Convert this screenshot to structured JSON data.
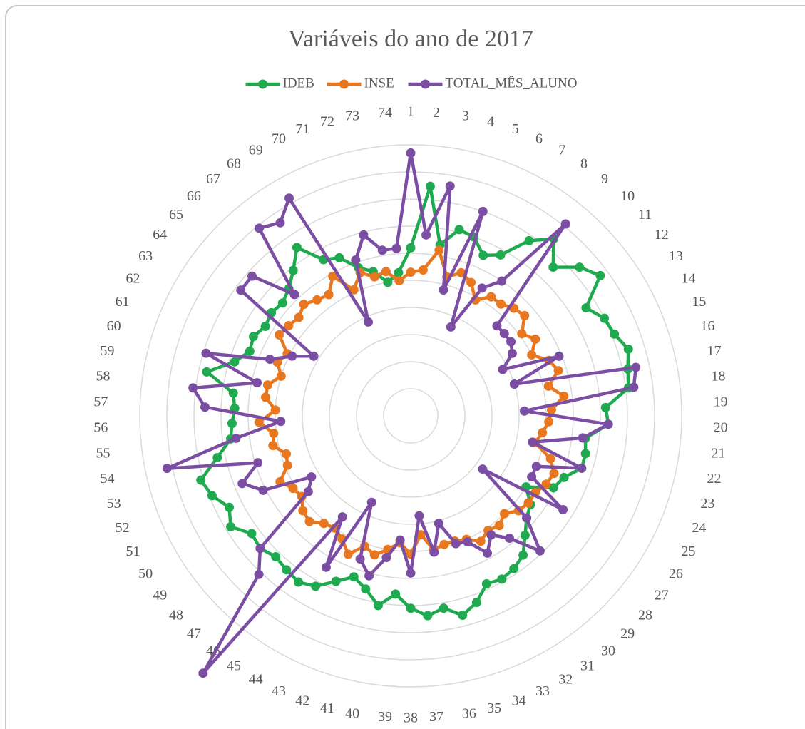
{
  "chart_data": {
    "type": "radar",
    "title": "Variáveis do ano de 2017",
    "categories": [
      "1",
      "2",
      "3",
      "4",
      "5",
      "6",
      "7",
      "8",
      "9",
      "10",
      "11",
      "12",
      "13",
      "14",
      "15",
      "16",
      "17",
      "18",
      "19",
      "20",
      "21",
      "22",
      "23",
      "24",
      "25",
      "26",
      "27",
      "28",
      "29",
      "30",
      "31",
      "32",
      "33",
      "34",
      "35",
      "36",
      "37",
      "38",
      "39",
      "40",
      "41",
      "42",
      "43",
      "44",
      "45",
      "46",
      "47",
      "48",
      "49",
      "50",
      "51",
      "52",
      "53",
      "54",
      "55",
      "56",
      "57",
      "58",
      "59",
      "60",
      "61",
      "62",
      "63",
      "64",
      "65",
      "66",
      "67",
      "68",
      "69",
      "70",
      "71",
      "72",
      "73",
      "74"
    ],
    "series": [
      {
        "name": "IDEB",
        "color": "#1faa4f",
        "values": [
          6.2,
          8.5,
          6.4,
          7.1,
          7.0,
          6.5,
          6.8,
          7.8,
          8.4,
          7.6,
          8.3,
          8.7,
          7.6,
          8.0,
          8.1,
          8.4,
          8.2,
          8.1,
          7.2,
          7.3,
          6.5,
          6.6,
          6.6,
          6.1,
          5.9,
          5.0,
          5.5,
          5.7,
          6.1,
          6.6,
          6.8,
          6.9,
          6.8,
          7.3,
          7.6,
          7.2,
          7.4,
          7.1,
          6.6,
          7.1,
          6.6,
          6.3,
          6.7,
          7.2,
          7.4,
          7.3,
          7.2,
          7.4,
          7.3,
          7.8,
          7.5,
          7.9,
          8.1,
          7.3,
          6.7,
          6.6,
          6.5,
          6.6,
          7.7,
          6.8,
          6.4,
          6.5,
          6.3,
          6.4,
          6.3,
          6.5,
          6.9,
          7.5,
          6.6,
          6.4,
          5.8,
          5.5,
          5.0,
          5.3
        ]
      },
      {
        "name": "INSE",
        "color": "#e8771f",
        "values": [
          5.3,
          5.4,
          6.2,
          5.3,
          5.6,
          5.4,
          4.9,
          5.3,
          5.3,
          5.5,
          5.6,
          5.1,
          5.4,
          5.0,
          5.5,
          5.7,
          5.2,
          5.7,
          5.2,
          5.1,
          4.9,
          4.7,
          5.4,
          5.7,
          5.6,
          5.4,
          5.4,
          5.3,
          5.0,
          5.2,
          5.1,
          5.3,
          5.0,
          4.9,
          4.9,
          5.0,
          4.4,
          5.1,
          4.7,
          5.0,
          5.3,
          5.1,
          5.6,
          5.2,
          5.0,
          5.1,
          5.4,
          5.3,
          5.0,
          5.1,
          5.4,
          4.9,
          4.8,
          5.2,
          5.1,
          5.6,
          5.0,
          5.4,
          5.4,
          5.0,
          5.3,
          5.1,
          5.7,
          5.6,
          5.5,
          5.7,
          5.5,
          5.4,
          5.9,
          5.1,
          5.6,
          5.3,
          5.4,
          5.0
        ]
      },
      {
        "name": "TOTAL_MÊS_ALUNO",
        "color": "#7b4ea3",
        "values": [
          9.7,
          6.7,
          8.6,
          4.8,
          8.0,
          3.6,
          5.4,
          6.0,
          9.1,
          4.6,
          4.6,
          4.6,
          4.4,
          3.8,
          5.9,
          4.0,
          8.5,
          8.3,
          4.2,
          7.3,
          6.4,
          4.6,
          6.6,
          5.0,
          5.0,
          6.6,
          3.3,
          5.7,
          6.9,
          5.8,
          5.3,
          5.8,
          5.1,
          5.0,
          4.1,
          5.1,
          3.7,
          5.8,
          4.6,
          5.3,
          6.1,
          5.6,
          3.5,
          6.4,
          4.5,
          12.2,
          8.1,
          7.4,
          4.7,
          4.3,
          6.1,
          6.7,
          5.9,
          9.2,
          6.5,
          4.8,
          7.6,
          8.1,
          5.8,
          7.9,
          5.6,
          4.9,
          4.2,
          7.8,
          7.8,
          6.2,
          8.9,
          8.6,
          9.2,
          3.8,
          6.1,
          6.9,
          6.2,
          6.2
        ]
      }
    ],
    "ylim": [
      0,
      10
    ],
    "yticks": [
      0,
      1,
      2,
      3,
      4,
      5,
      6,
      7,
      8,
      9,
      10
    ],
    "grid": true,
    "legend": "top"
  }
}
